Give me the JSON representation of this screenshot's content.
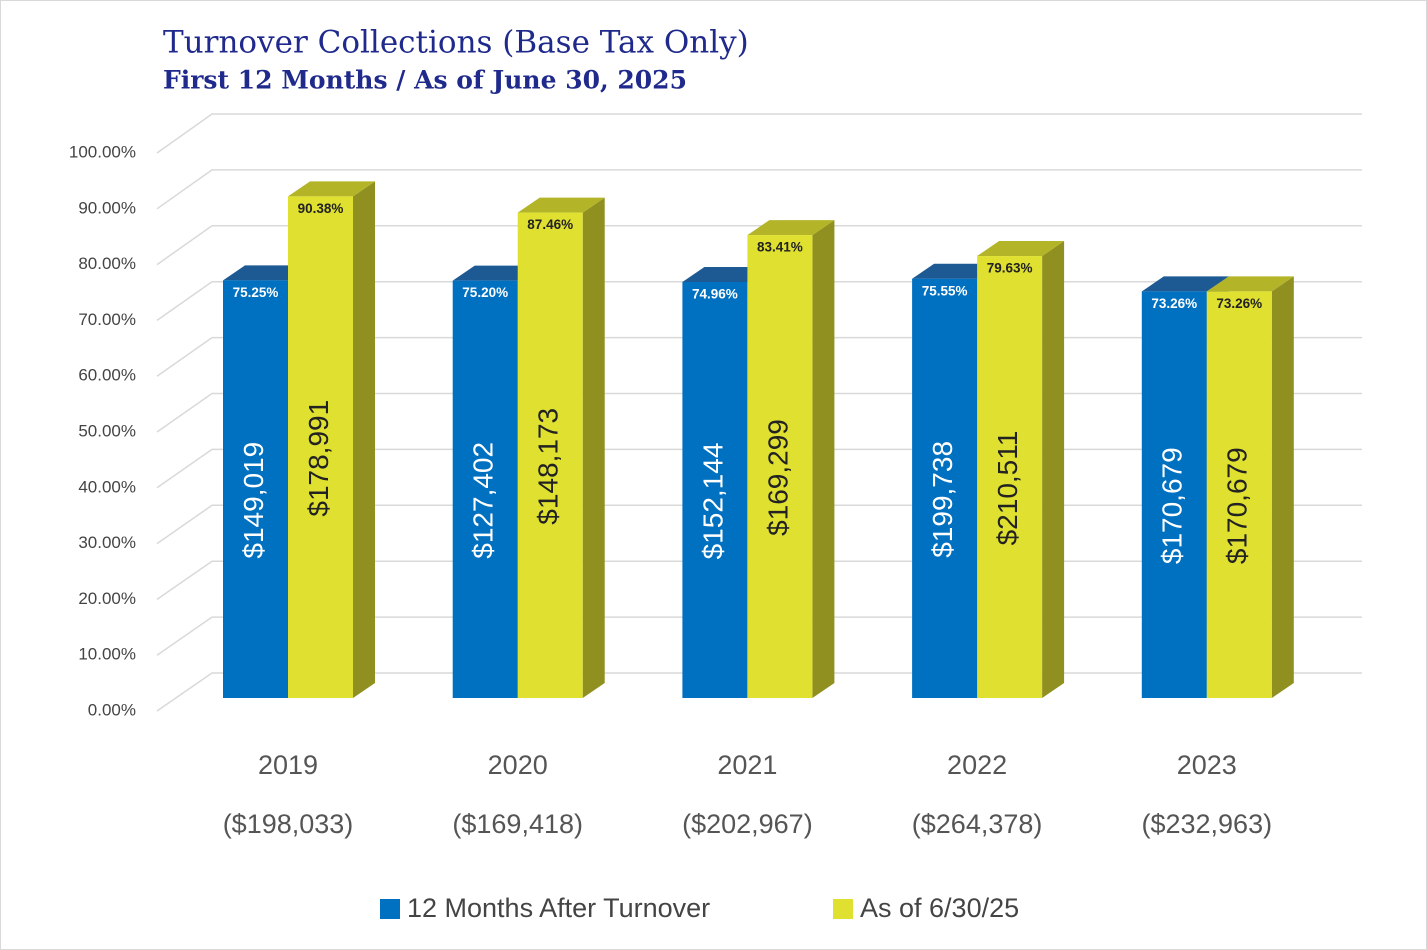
{
  "chart_data": {
    "type": "bar3d",
    "title": "Turnover Collections (Base Tax Only)",
    "subtitle": "First 12 Months / As of June 30, 2025",
    "categories": [
      "2019",
      "2020",
      "2021",
      "2022",
      "2023"
    ],
    "category_sublabels": [
      "($198,033)",
      "($169,418)",
      "($202,967)",
      "($264,378)",
      "($232,963)"
    ],
    "series": [
      {
        "name": "12 Months After Turnover",
        "color": "#0070c0",
        "side_color": "#005a9c",
        "top_color": "#1d5a94",
        "label_color": "#ffffff",
        "values": [
          75.25,
          75.2,
          74.96,
          75.55,
          73.26
        ],
        "value_labels": [
          "75.25%",
          "75.20%",
          "74.96%",
          "75.55%",
          "73.26%"
        ],
        "amount_labels": [
          "$149,019",
          "$127,402",
          "$152,144",
          "$199,738",
          "$170,679"
        ]
      },
      {
        "name": "As of 6/30/25",
        "color": "#dfe030",
        "side_color": "#8f901f",
        "top_color": "#b3b428",
        "label_color": "#222222",
        "values": [
          90.38,
          87.46,
          83.41,
          79.63,
          73.26
        ],
        "value_labels": [
          "90.38%",
          "87.46%",
          "83.41%",
          "79.63%",
          "73.26%"
        ],
        "amount_labels": [
          "$178,991",
          "$148,173",
          "$169,299",
          "$210,511",
          "$170,679"
        ]
      }
    ],
    "ylim": [
      0,
      100
    ],
    "yticks": [
      {
        "value": 0,
        "label": "0.00%"
      },
      {
        "value": 10,
        "label": "10.00%"
      },
      {
        "value": 20,
        "label": "20.00%"
      },
      {
        "value": 30,
        "label": "30.00%"
      },
      {
        "value": 40,
        "label": "40.00%"
      },
      {
        "value": 50,
        "label": "50.00%"
      },
      {
        "value": 60,
        "label": "60.00%"
      },
      {
        "value": 70,
        "label": "70.00%"
      },
      {
        "value": 80,
        "label": "80.00%"
      },
      {
        "value": 90,
        "label": "90.00%"
      },
      {
        "value": 100,
        "label": "100.00%"
      }
    ],
    "grid": true,
    "legend": "bottom"
  }
}
